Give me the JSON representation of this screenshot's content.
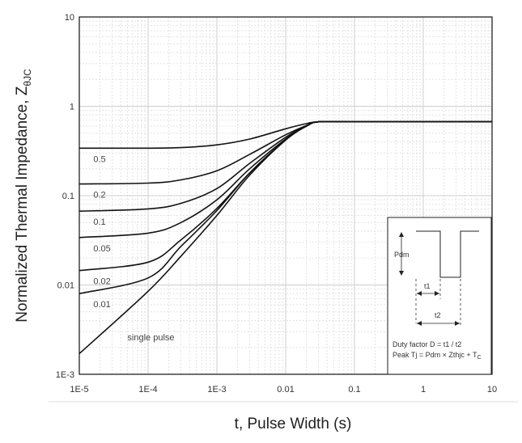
{
  "chart_data": {
    "type": "line",
    "xscale": "log",
    "yscale": "log",
    "xlim": [
      1e-05,
      10
    ],
    "ylim": [
      0.001,
      10
    ],
    "xlabel": "t, Pulse Width (s)",
    "ylabel_main": "Normalized Thermal Impedance, Z",
    "ylabel_sub": "θJC",
    "grid": true,
    "x_ticks": [
      {
        "value": 1e-05,
        "label": "1E-5"
      },
      {
        "value": 0.0001,
        "label": "1E-4"
      },
      {
        "value": 0.001,
        "label": "1E-3"
      },
      {
        "value": 0.01,
        "label": "0.01"
      },
      {
        "value": 0.1,
        "label": "0.1"
      },
      {
        "value": 1,
        "label": "1"
      },
      {
        "value": 10,
        "label": "10"
      }
    ],
    "y_ticks": [
      {
        "value": 0.001,
        "label": "1E-3"
      },
      {
        "value": 0.01,
        "label": "0.01"
      },
      {
        "value": 0.1,
        "label": "0.1"
      },
      {
        "value": 1,
        "label": "1"
      },
      {
        "value": 10,
        "label": "10"
      }
    ],
    "series": [
      {
        "name": "0.5",
        "x": [
          1e-05,
          0.0001,
          0.0003,
          0.001,
          0.003,
          0.01,
          0.02,
          0.03,
          0.1,
          1,
          10
        ],
        "y": [
          0.34,
          0.34,
          0.345,
          0.37,
          0.43,
          0.56,
          0.64,
          0.67,
          0.67,
          0.67,
          0.67
        ]
      },
      {
        "name": "0.2",
        "x": [
          1e-05,
          0.0001,
          0.0003,
          0.001,
          0.003,
          0.01,
          0.02,
          0.03,
          0.1,
          1,
          10
        ],
        "y": [
          0.135,
          0.138,
          0.15,
          0.19,
          0.29,
          0.48,
          0.61,
          0.67,
          0.67,
          0.67,
          0.67
        ]
      },
      {
        "name": "0.1",
        "x": [
          1e-05,
          0.0001,
          0.0003,
          0.001,
          0.003,
          0.01,
          0.02,
          0.03,
          0.1,
          1,
          10
        ],
        "y": [
          0.067,
          0.071,
          0.082,
          0.12,
          0.23,
          0.45,
          0.6,
          0.67,
          0.67,
          0.67,
          0.67
        ]
      },
      {
        "name": "0.05",
        "x": [
          1e-05,
          0.0001,
          0.0003,
          0.001,
          0.003,
          0.01,
          0.02,
          0.03,
          0.1,
          1,
          10
        ],
        "y": [
          0.034,
          0.038,
          0.05,
          0.09,
          0.2,
          0.43,
          0.6,
          0.67,
          0.67,
          0.67,
          0.67
        ]
      },
      {
        "name": "0.02",
        "x": [
          1e-05,
          0.0001,
          0.0003,
          0.001,
          0.003,
          0.01,
          0.02,
          0.03,
          0.1,
          1,
          10
        ],
        "y": [
          0.0145,
          0.018,
          0.032,
          0.072,
          0.18,
          0.42,
          0.6,
          0.67,
          0.67,
          0.67,
          0.67
        ]
      },
      {
        "name": "0.01",
        "x": [
          1e-05,
          0.0001,
          0.0003,
          0.001,
          0.003,
          0.01,
          0.02,
          0.03,
          0.1,
          1,
          10
        ],
        "y": [
          0.008,
          0.012,
          0.027,
          0.068,
          0.18,
          0.42,
          0.6,
          0.67,
          0.67,
          0.67,
          0.67
        ]
      },
      {
        "name": "single pulse",
        "x": [
          1e-05,
          0.0001,
          0.0003,
          0.001,
          0.003,
          0.01,
          0.02,
          0.03,
          0.1,
          1,
          10
        ],
        "y": [
          0.0017,
          0.0085,
          0.021,
          0.06,
          0.17,
          0.42,
          0.6,
          0.67,
          0.67,
          0.67,
          0.67
        ]
      }
    ],
    "inset": {
      "pdm_label": "Pdm",
      "t1_label": "t1",
      "t2_label": "t2",
      "duty_text": "Duty factor D = t1 / t2",
      "peak_text_main": "Peak Tj = Pdm × Zthjc + T",
      "peak_text_sub": "C"
    }
  }
}
